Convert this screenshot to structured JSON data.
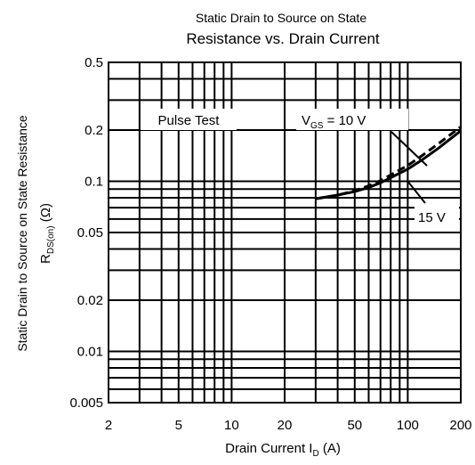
{
  "chart_data": {
    "type": "line",
    "title": "Static Drain to Source on State",
    "subtitle": "Resistance vs. Drain Current",
    "xlabel": "Drain Current  I",
    "xlabel_sub": "D",
    "xlabel_unit": " (A)",
    "ylabel": "Static Drain to Source on State Resistance",
    "ylabel2": "R",
    "ylabel2_sub": "DS(on)",
    "ylabel2_unit": " (Ω)",
    "x_scale": "log",
    "y_scale": "log",
    "xlim": [
      2,
      200
    ],
    "ylim": [
      0.005,
      0.5
    ],
    "x_ticks": [
      {
        "value": 2,
        "label": "2"
      },
      {
        "value": 5,
        "label": "5"
      },
      {
        "value": 10,
        "label": "10"
      },
      {
        "value": 20,
        "label": "20"
      },
      {
        "value": 50,
        "label": "50"
      },
      {
        "value": 100,
        "label": "100"
      },
      {
        "value": 200,
        "label": "200"
      }
    ],
    "y_ticks": [
      {
        "value": 0.005,
        "label": "0.005"
      },
      {
        "value": 0.01,
        "label": "0.01"
      },
      {
        "value": 0.02,
        "label": "0.02"
      },
      {
        "value": 0.05,
        "label": "0.05"
      },
      {
        "value": 0.1,
        "label": "0.1"
      },
      {
        "value": 0.2,
        "label": "0.2"
      },
      {
        "value": 0.5,
        "label": "0.5"
      }
    ],
    "grid": true,
    "annotations": {
      "pulse_test": "Pulse Test",
      "vgs_label": "V",
      "vgs_sub": "GS",
      "vgs_value": " = 10 V",
      "v15_label": "15 V"
    },
    "series": [
      {
        "name": "V_GS = 10 V",
        "style": "dashed",
        "color": "#000000",
        "points": [
          [
            30,
            0.079
          ],
          [
            40,
            0.083
          ],
          [
            50,
            0.088
          ],
          [
            60,
            0.094
          ],
          [
            70,
            0.101
          ],
          [
            80,
            0.109
          ],
          [
            100,
            0.124
          ],
          [
            120,
            0.141
          ],
          [
            150,
            0.167
          ],
          [
            200,
            0.209
          ]
        ]
      },
      {
        "name": "15 V",
        "style": "solid",
        "color": "#000000",
        "points": [
          [
            30,
            0.079
          ],
          [
            40,
            0.083
          ],
          [
            50,
            0.087
          ],
          [
            60,
            0.092
          ],
          [
            70,
            0.098
          ],
          [
            80,
            0.105
          ],
          [
            100,
            0.118
          ],
          [
            120,
            0.133
          ],
          [
            150,
            0.157
          ],
          [
            200,
            0.198
          ]
        ]
      }
    ]
  }
}
